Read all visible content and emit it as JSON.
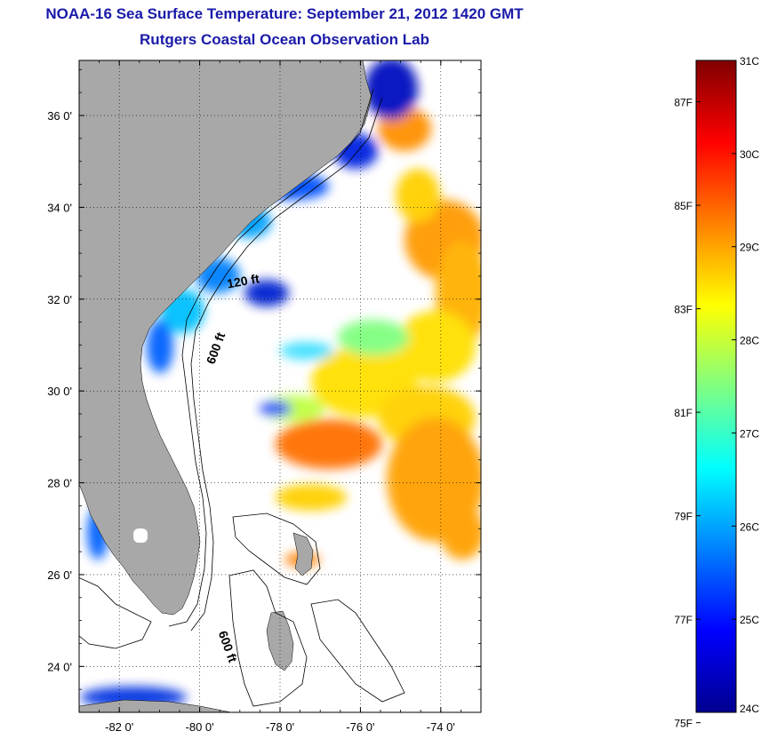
{
  "header": {
    "title": "NOAA-16 Sea Surface Temperature:  September 21, 2012 1420 GMT",
    "subtitle": "Rutgers Coastal Ocean Observation Lab"
  },
  "map": {
    "lon_range": [
      -83,
      -73
    ],
    "lat_range": [
      23,
      37.2
    ],
    "lon_ticks": [
      {
        "value": -82,
        "label": "-82 0'"
      },
      {
        "value": -80,
        "label": "-80 0'"
      },
      {
        "value": -78,
        "label": "-78 0'"
      },
      {
        "value": -76,
        "label": "-76 0'"
      },
      {
        "value": -74,
        "label": "-74 0'"
      }
    ],
    "lat_ticks": [
      {
        "value": 24,
        "label": "24 0'"
      },
      {
        "value": 26,
        "label": "26 0'"
      },
      {
        "value": 28,
        "label": "28 0'"
      },
      {
        "value": 30,
        "label": "30 0'"
      },
      {
        "value": 32,
        "label": "32 0'"
      },
      {
        "value": 34,
        "label": "34 0'"
      },
      {
        "value": 36,
        "label": "36 0'"
      }
    ],
    "land_color": "#a8a8a8",
    "contour_labels": [
      {
        "text": "120 ft",
        "lon": -78.9,
        "lat": 32.3,
        "angle": -10
      },
      {
        "text": "600 ft",
        "lon": -79.5,
        "lat": 30.9,
        "angle": -70
      },
      {
        "text": "600 ft",
        "lon": -79.4,
        "lat": 24.4,
        "angle": 70
      }
    ]
  },
  "colorbar": {
    "min_c": 24,
    "max_c": 31,
    "celsius_labels": [
      "31C",
      "30C",
      "29C",
      "28C",
      "27C",
      "26C",
      "25C",
      "24C"
    ],
    "fahrenheit_labels": [
      {
        "label": "87F",
        "value": 87
      },
      {
        "label": "85F",
        "value": 85
      },
      {
        "label": "83F",
        "value": 83
      },
      {
        "label": "81F",
        "value": 81
      },
      {
        "label": "79F",
        "value": 79
      },
      {
        "label": "77F",
        "value": 77
      },
      {
        "label": "75F",
        "value": 75
      }
    ],
    "gradient": [
      "#00008f",
      "#0000ff",
      "#0080ff",
      "#00ffff",
      "#80ff80",
      "#ffff00",
      "#ff8000",
      "#ff0000",
      "#800000"
    ]
  }
}
